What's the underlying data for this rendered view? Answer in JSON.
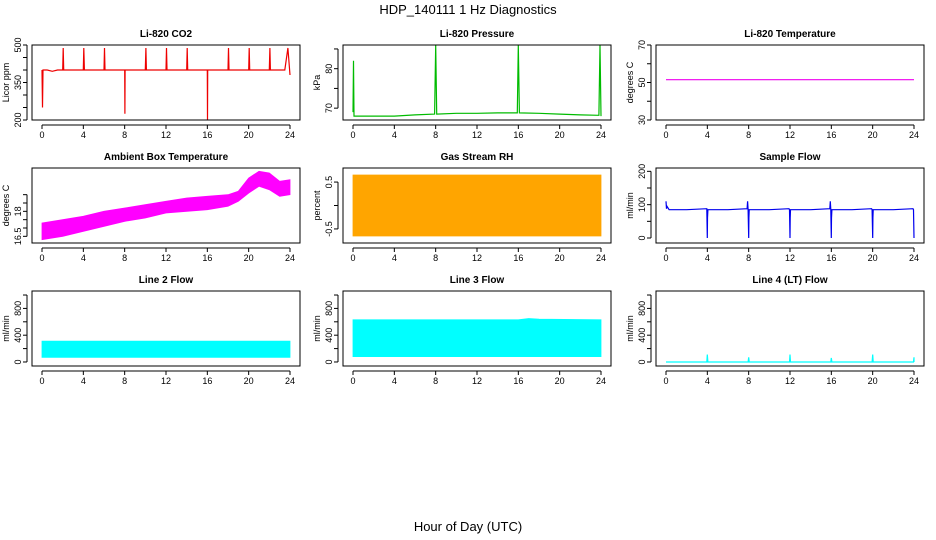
{
  "figure": {
    "title": "HDP_140111  1 Hz Diagnostics",
    "xlabel": "Hour of Day (UTC)"
  },
  "chart_data": [
    {
      "type": "line",
      "title": "Li-820 CO2",
      "ylabel": "Licor ppm",
      "color": "#ee0000",
      "xlim": [
        0,
        24
      ],
      "ylim": [
        200,
        500
      ],
      "xticks": [
        0,
        4,
        8,
        12,
        16,
        20,
        24
      ],
      "yticks": [
        200,
        350,
        500
      ],
      "yticks_minor": [
        250,
        300,
        400,
        450
      ],
      "series": [
        {
          "x": [
            0,
            0.05,
            0.1,
            0.15,
            0.2,
            0.5,
            1,
            1.5,
            2,
            2.05,
            2.1,
            3,
            3.5,
            4,
            4.05,
            4.1,
            5,
            6,
            6.05,
            6.1,
            7,
            7.5,
            8,
            8.02,
            8.04,
            8.1,
            9,
            10,
            10.05,
            10.1,
            11,
            12,
            12.05,
            12.1,
            13,
            14,
            14.05,
            14.1,
            15,
            16,
            16.02,
            16.04,
            16.1,
            17,
            18,
            18.05,
            18.1,
            19,
            20,
            20.05,
            20.1,
            21,
            22,
            22.05,
            22.1,
            23,
            23.5,
            23.8,
            24
          ],
          "y": [
            400,
            250,
            400,
            400,
            400,
            400,
            395,
            400,
            400,
            488,
            400,
            400,
            400,
            400,
            488,
            400,
            400,
            400,
            488,
            400,
            400,
            400,
            400,
            225,
            400,
            400,
            400,
            400,
            488,
            400,
            400,
            400,
            488,
            400,
            400,
            400,
            488,
            400,
            400,
            400,
            200,
            400,
            400,
            400,
            400,
            488,
            400,
            400,
            400,
            488,
            400,
            400,
            400,
            488,
            400,
            400,
            400,
            488,
            380
          ]
        }
      ]
    },
    {
      "type": "line",
      "title": "Li-820 Pressure",
      "ylabel": "kPa",
      "color": "#00bb00",
      "xlim": [
        0,
        24
      ],
      "ylim": [
        67,
        86
      ],
      "xticks": [
        0,
        4,
        8,
        12,
        16,
        20,
        24
      ],
      "yticks": [
        70,
        80
      ],
      "yticks_minor": [
        75,
        85
      ],
      "series": [
        {
          "x": [
            0,
            0.05,
            0.1,
            0.3,
            2,
            4,
            6,
            7.9,
            8,
            8.1,
            10,
            12,
            14,
            15.9,
            16,
            16.1,
            18,
            20,
            22,
            23.8,
            23.9,
            24
          ],
          "y": [
            69,
            82,
            68,
            68,
            68,
            68,
            68.3,
            68.5,
            86,
            68.5,
            68.7,
            68.7,
            68.8,
            68.8,
            86,
            68.8,
            68.7,
            68.5,
            68.3,
            68.2,
            86,
            68
          ]
        }
      ]
    },
    {
      "type": "line",
      "title": "Li-820 Temperature",
      "ylabel": "degrees C",
      "color": "#ee00ee",
      "xlim": [
        0,
        24
      ],
      "ylim": [
        30,
        70
      ],
      "xticks": [
        0,
        4,
        8,
        12,
        16,
        20,
        24
      ],
      "yticks": [
        30,
        50,
        70
      ],
      "yticks_minor": [
        40,
        60
      ],
      "series": [
        {
          "x": [
            0,
            24
          ],
          "y": [
            51.5,
            51.5
          ]
        }
      ]
    },
    {
      "type": "area",
      "title": "Ambient Box Temperature",
      "ylabel": "degrees C",
      "color": "#ff00ff",
      "xlim": [
        0,
        24
      ],
      "ylim": [
        16.1,
        20.6
      ],
      "xticks": [
        0,
        4,
        8,
        12,
        16,
        20,
        24
      ],
      "yticks": [
        16.5,
        18.0
      ],
      "yticks_minor": [
        17.0,
        17.5,
        18.5,
        19.0
      ],
      "series": [
        {
          "name": "max",
          "x": [
            0,
            2,
            4,
            6,
            8,
            10,
            12,
            14,
            16,
            18,
            19,
            20,
            21,
            22,
            23,
            24
          ],
          "y": [
            17.3,
            17.5,
            17.7,
            18.0,
            18.2,
            18.4,
            18.6,
            18.8,
            18.9,
            19.0,
            19.2,
            20.0,
            20.4,
            20.3,
            19.8,
            19.9
          ]
        },
        {
          "name": "min",
          "x": [
            0,
            2,
            4,
            6,
            8,
            10,
            12,
            14,
            16,
            18,
            19,
            20,
            21,
            22,
            23,
            24
          ],
          "y": [
            16.3,
            16.5,
            16.8,
            17.1,
            17.4,
            17.6,
            17.9,
            18.0,
            18.1,
            18.3,
            18.6,
            19.1,
            19.5,
            19.3,
            18.9,
            19.0
          ]
        }
      ]
    },
    {
      "type": "area",
      "title": "Gas Stream RH",
      "ylabel": "percent",
      "color": "#ffa500",
      "xlim": [
        0,
        24
      ],
      "ylim": [
        -0.8,
        0.8
      ],
      "xticks": [
        0,
        4,
        8,
        12,
        16,
        20,
        24
      ],
      "yticks": [
        -0.5,
        0.5
      ],
      "yticks_minor": [
        0.0
      ],
      "series": [
        {
          "name": "max",
          "x": [
            0,
            24
          ],
          "y": [
            0.65,
            0.65
          ]
        },
        {
          "name": "min",
          "x": [
            0,
            24
          ],
          "y": [
            -0.65,
            -0.65
          ]
        }
      ]
    },
    {
      "type": "line",
      "title": "Sample Flow",
      "ylabel": "ml/min",
      "color": "#0000ee",
      "xlim": [
        0,
        24
      ],
      "ylim": [
        -15,
        210
      ],
      "xticks": [
        0,
        4,
        8,
        12,
        16,
        20,
        24
      ],
      "yticks": [
        0,
        100,
        200
      ],
      "yticks_minor": [
        50,
        150
      ],
      "series": [
        {
          "x": [
            0,
            0.05,
            0.1,
            0.3,
            2,
            3.95,
            4,
            4.02,
            4.05,
            6,
            7.85,
            7.9,
            7.95,
            8,
            8.02,
            8.05,
            10,
            11.9,
            11.95,
            12,
            12.02,
            12.05,
            14,
            15.85,
            15.9,
            15.95,
            16,
            16.02,
            16.05,
            18,
            19.9,
            19.95,
            20,
            20.02,
            20.05,
            22,
            23.9,
            23.95,
            24
          ],
          "y": [
            110,
            88,
            95,
            85,
            85,
            88,
            0,
            60,
            85,
            85,
            88,
            110,
            85,
            0,
            60,
            85,
            85,
            88,
            85,
            0,
            60,
            85,
            85,
            88,
            110,
            85,
            0,
            60,
            85,
            85,
            88,
            85,
            0,
            60,
            85,
            85,
            88,
            85,
            0
          ]
        }
      ]
    },
    {
      "type": "area",
      "title": "Line 2 Flow",
      "ylabel": "ml/min",
      "color": "#00ffff",
      "xlim": [
        0,
        24
      ],
      "ylim": [
        -60,
        1060
      ],
      "xticks": [
        0,
        4,
        8,
        12,
        16,
        20,
        24
      ],
      "yticks": [
        0,
        400,
        800
      ],
      "yticks_minor": [
        200,
        600,
        1000
      ],
      "series": [
        {
          "name": "max",
          "x": [
            0,
            24
          ],
          "y": [
            310,
            310
          ]
        },
        {
          "name": "min",
          "x": [
            0,
            24
          ],
          "y": [
            70,
            70
          ]
        }
      ]
    },
    {
      "type": "area",
      "title": "Line 3 Flow",
      "ylabel": "ml/min",
      "color": "#00ffff",
      "xlim": [
        0,
        24
      ],
      "ylim": [
        -60,
        1060
      ],
      "xticks": [
        0,
        4,
        8,
        12,
        16,
        20,
        24
      ],
      "yticks": [
        0,
        400,
        800
      ],
      "yticks_minor": [
        200,
        600,
        1000
      ],
      "series": [
        {
          "name": "max",
          "x": [
            0,
            16,
            17,
            18,
            24
          ],
          "y": [
            630,
            630,
            650,
            640,
            630
          ]
        },
        {
          "name": "min",
          "x": [
            0,
            24
          ],
          "y": [
            80,
            80
          ]
        }
      ]
    },
    {
      "type": "line",
      "title": "Line 4 (LT) Flow",
      "ylabel": "ml/min",
      "color": "#00ffff",
      "xlim": [
        0,
        24
      ],
      "ylim": [
        -60,
        1060
      ],
      "xticks": [
        0,
        4,
        8,
        12,
        16,
        20,
        24
      ],
      "yticks": [
        0,
        400,
        800
      ],
      "yticks_minor": [
        200,
        600,
        1000
      ],
      "series": [
        {
          "x": [
            0,
            3.95,
            4,
            4.05,
            7.95,
            8,
            8.05,
            11.95,
            12,
            12.05,
            15.95,
            16,
            16.05,
            19.95,
            20,
            20.05,
            23.95,
            24,
            24
          ],
          "y": [
            0,
            0,
            110,
            0,
            0,
            70,
            0,
            0,
            110,
            0,
            0,
            60,
            0,
            0,
            110,
            0,
            0,
            70,
            0
          ]
        }
      ]
    }
  ]
}
